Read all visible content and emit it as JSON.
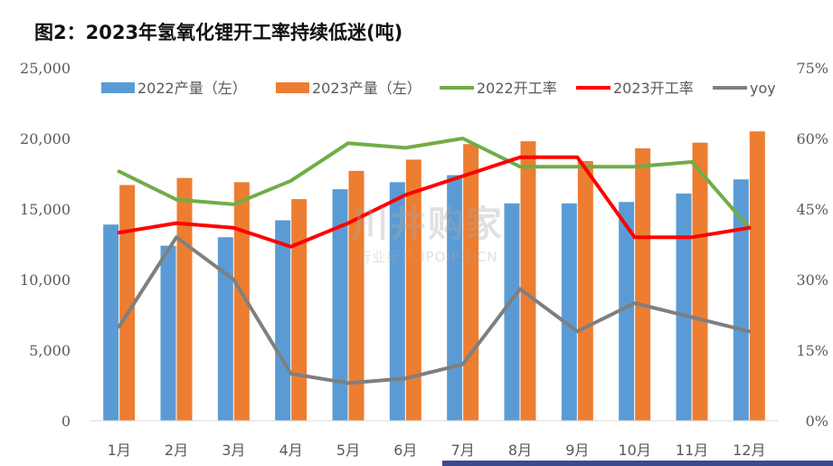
{
  "title": "图2：2023年氢氧化锂开工率持续低迷(吨)",
  "watermark": {
    "main": "川井购家",
    "sub": "行业报告 IPOIPO.CN"
  },
  "colors": {
    "s2022": "#5b9bd5",
    "s2023": "#ed7d31",
    "r2022": "#70ad47",
    "r2023": "#ff0000",
    "yoy": "#7f7f7f",
    "axis": "#d9d9d9",
    "tick": "#595959"
  },
  "chart_data": {
    "type": "bar",
    "categories": [
      "1月",
      "2月",
      "3月",
      "4月",
      "5月",
      "6月",
      "7月",
      "8月",
      "9月",
      "10月",
      "11月",
      "12月"
    ],
    "left_axis": {
      "min": 0,
      "max": 25000,
      "ticks": [
        "0",
        "5,000",
        "10,000",
        "15,000",
        "20,000",
        "25,000"
      ]
    },
    "right_axis": {
      "min": 0,
      "max": 75,
      "ticks": [
        "0%",
        "15%",
        "30%",
        "45%",
        "60%",
        "75%"
      ]
    },
    "legend_position": "top",
    "series": [
      {
        "name": "2022产量（左）",
        "kind": "bar",
        "axis": "left",
        "color": "#5b9bd5",
        "values": [
          13900,
          12400,
          13000,
          14200,
          16400,
          16900,
          17400,
          15400,
          15400,
          15500,
          16100,
          17100
        ]
      },
      {
        "name": "2023产量（左）",
        "kind": "bar",
        "axis": "left",
        "color": "#ed7d31",
        "values": [
          16700,
          17200,
          16900,
          15700,
          17700,
          18500,
          19600,
          19800,
          18400,
          19300,
          19700,
          20500
        ]
      },
      {
        "name": "2022开工率",
        "kind": "line",
        "axis": "right",
        "color": "#70ad47",
        "values": [
          53,
          47,
          46,
          51,
          59,
          58,
          60,
          54,
          54,
          54,
          55,
          41
        ]
      },
      {
        "name": "2023开工率",
        "kind": "line",
        "axis": "right",
        "color": "#ff0000",
        "values": [
          40,
          42,
          41,
          37,
          42,
          48,
          52,
          56,
          56,
          39,
          39,
          41
        ]
      },
      {
        "name": "yoy",
        "kind": "line",
        "axis": "right",
        "color": "#7f7f7f",
        "values": [
          20,
          39,
          30,
          10,
          8,
          9,
          12,
          28,
          19,
          25,
          22,
          19
        ]
      }
    ]
  }
}
